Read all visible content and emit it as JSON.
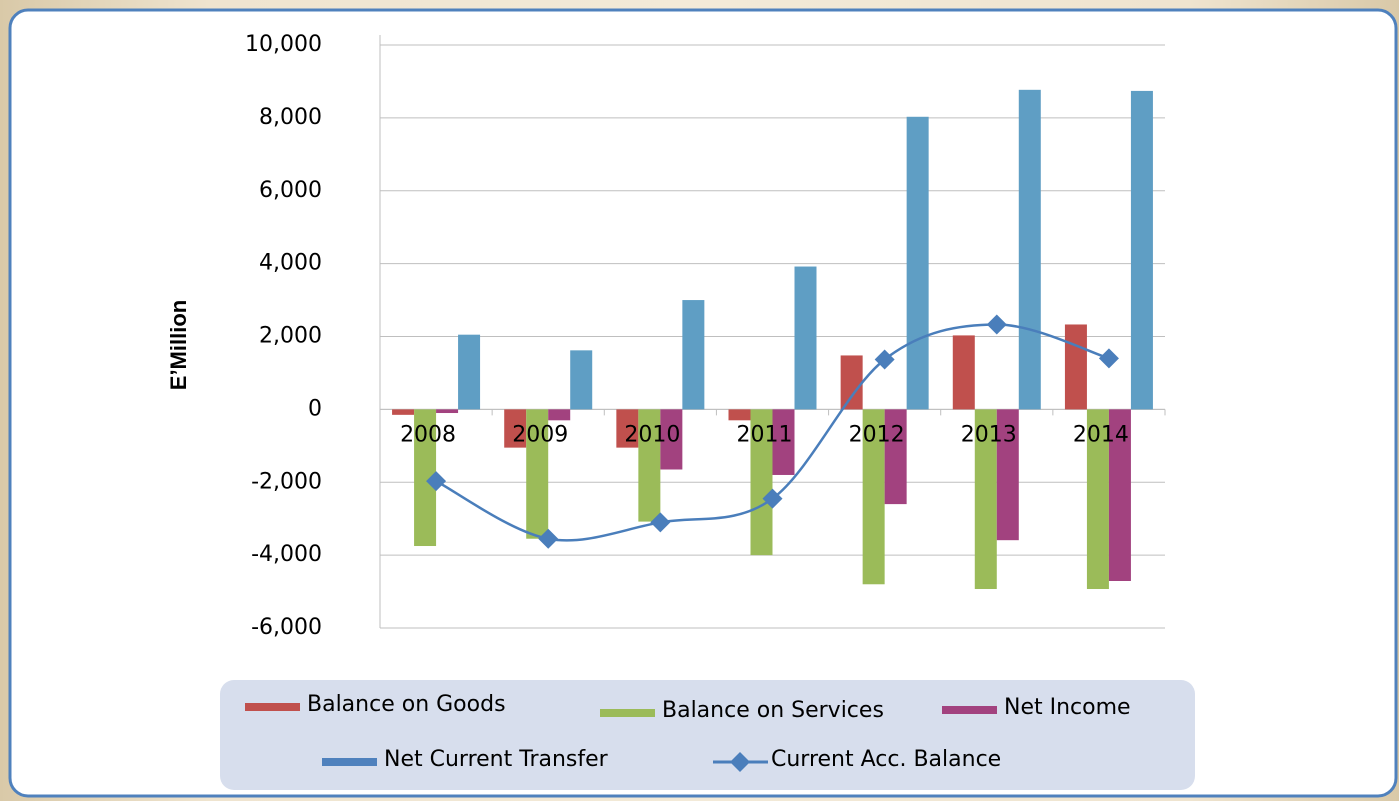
{
  "chart_data": {
    "type": "bar",
    "ylabel": "E’Million",
    "categories": [
      "2008",
      "2009",
      "2010",
      "2011",
      "2012",
      "2013",
      "2014"
    ],
    "series": [
      {
        "name": "Balance on Goods",
        "color": "#c0504d",
        "values": [
          -150,
          -1050,
          -1050,
          -300,
          1480,
          2030,
          2330
        ]
      },
      {
        "name": "Balance on Services",
        "color": "#9bbb59",
        "values": [
          -3750,
          -3550,
          -3080,
          -4000,
          -4800,
          -4930,
          -4930
        ]
      },
      {
        "name": "Net Income",
        "color": "#a2427f",
        "values": [
          -100,
          -300,
          -1650,
          -1800,
          -2600,
          -3590,
          -4710
        ]
      },
      {
        "name": "Net Current Transfer",
        "color": "#5f9ec4",
        "values": [
          2050,
          1620,
          3000,
          3920,
          8030,
          8770,
          8740
        ]
      },
      {
        "name": "Current Acc. Balance",
        "type": "line",
        "color": "#4a7ebb",
        "values": [
          -1970,
          -3550,
          -3100,
          -2450,
          1370,
          2330,
          1400
        ]
      }
    ],
    "ylim": [
      -6000,
      10000
    ],
    "yticks": [
      {
        "value": -6000,
        "label": "-6,000"
      },
      {
        "value": -4000,
        "label": "-4,000"
      },
      {
        "value": -2000,
        "label": "-2,000"
      },
      0,
      {
        "value": 2000,
        "label": "2,000"
      },
      {
        "value": 4000,
        "label": "4,000"
      },
      {
        "value": 6000,
        "label": "6,000"
      },
      {
        "value": 8000,
        "label": "8,000"
      },
      {
        "value": 10000,
        "label": "10,000"
      }
    ],
    "grid": true,
    "legend": "bottom"
  }
}
